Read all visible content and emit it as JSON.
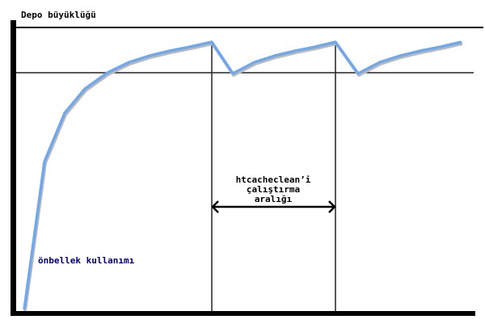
{
  "diagram": {
    "y_axis_label": "Depo büyüklüğü",
    "curve_label": "önbellek kullanımı",
    "interval_label": [
      "htcacheclean’i",
      "çalıştırma",
      "aralığı"
    ],
    "colors": {
      "curve": "#6fa8ec",
      "axes": "#000000",
      "curve_label": "#000080"
    }
  }
}
